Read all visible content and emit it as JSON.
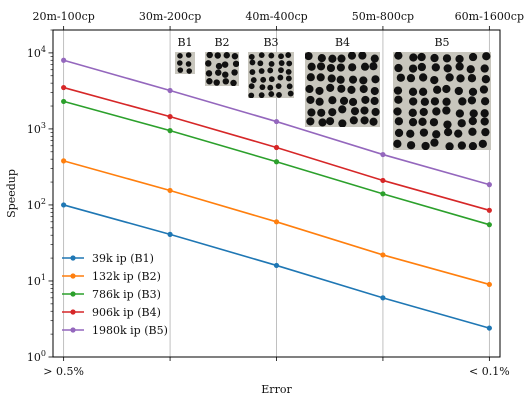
{
  "chart_data": {
    "type": "line",
    "ylabel": "Speedup",
    "xlabel": "Error",
    "y_scale": "log",
    "ylim": [
      1,
      20000
    ],
    "x_positions": [
      0,
      1,
      2,
      3,
      4
    ],
    "bottom_tick_labels": [
      {
        "pos": 0,
        "label": "> 0.5%"
      },
      {
        "pos": 4,
        "label": "< 0.1%"
      }
    ],
    "top_tick_labels": [
      "20m-100cp",
      "30m-200cp",
      "40m-400cp",
      "50m-800cp",
      "60m-1600cp"
    ],
    "y_ticks": [
      {
        "value": 1,
        "base": "10",
        "exp": "0"
      },
      {
        "value": 10,
        "base": "10",
        "exp": "1"
      },
      {
        "value": 100,
        "base": "10",
        "exp": "2"
      },
      {
        "value": 1000,
        "base": "10",
        "exp": "3"
      },
      {
        "value": 10000,
        "base": "10",
        "exp": "4"
      }
    ],
    "legend_position": "lower-left",
    "series": [
      {
        "name": "39k ip (B1)",
        "color": "#1f77b4",
        "values": [
          100,
          41,
          16,
          6,
          2.4
        ]
      },
      {
        "name": "132k ip (B2)",
        "color": "#ff7f0e",
        "values": [
          380,
          155,
          60,
          22,
          9
        ]
      },
      {
        "name": "786k ip (B3)",
        "color": "#2ca02c",
        "values": [
          2300,
          950,
          370,
          140,
          55
        ]
      },
      {
        "name": "906k ip (B4)",
        "color": "#d62728",
        "values": [
          3500,
          1450,
          570,
          210,
          85
        ]
      },
      {
        "name": "1980k ip (B5)",
        "color": "#9467bd",
        "values": [
          8000,
          3200,
          1250,
          460,
          185
        ]
      }
    ],
    "inset_images": [
      {
        "label": "B1"
      },
      {
        "label": "B2"
      },
      {
        "label": "B3"
      },
      {
        "label": "B4"
      },
      {
        "label": "B5"
      }
    ]
  }
}
